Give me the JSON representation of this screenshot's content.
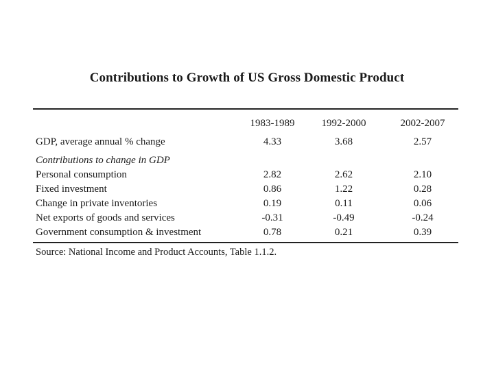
{
  "title": "Contributions to Growth of US Gross Domestic Product",
  "table": {
    "headers": [
      "",
      "1983-1989",
      "1992-2000",
      "2002-2007"
    ],
    "gdp_row": {
      "label": "GDP, average annual % change",
      "values": [
        "4.33",
        "3.68",
        "2.57"
      ]
    },
    "section_label": "Contributions to change in GDP",
    "rows": [
      {
        "label": "Personal consumption",
        "values": [
          "2.82",
          "2.62",
          "2.10"
        ]
      },
      {
        "label": "Fixed investment",
        "values": [
          "0.86",
          "1.22",
          "0.28"
        ]
      },
      {
        "label": "Change in private inventories",
        "values": [
          "0.19",
          "0.11",
          "0.06"
        ]
      },
      {
        "label": "Net exports of goods and services",
        "values": [
          "-0.31",
          "-0.49",
          "-0.24"
        ]
      },
      {
        "label": "Government consumption & investment",
        "values": [
          "0.78",
          "0.21",
          "0.39"
        ]
      }
    ]
  },
  "source": "Source: National Income and Product Accounts, Table 1.1.2."
}
